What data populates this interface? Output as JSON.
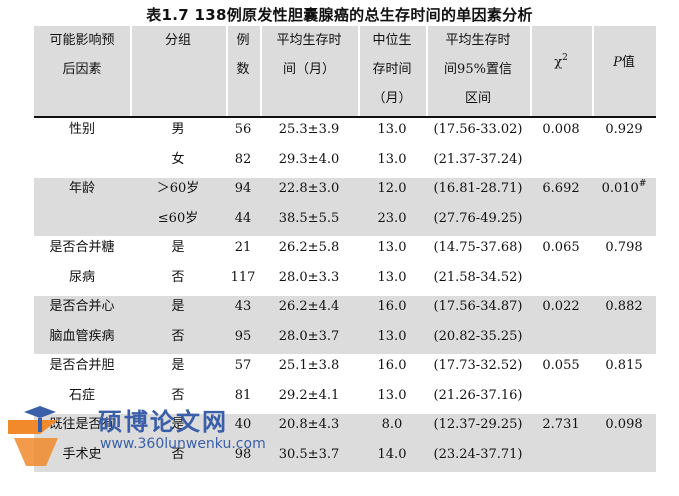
{
  "title": "表1.7 138例原发性胆囊腺癌的总生存时间的单因素分析",
  "headers": {
    "factor": "可能影响预\n后因素",
    "group": "分组",
    "n": "例\n数",
    "mean": "平均生存时\n间（月）",
    "median": "中位生\n存时间\n（月）",
    "ci": "平均生存时\n间95%置信\n区间",
    "chi": "χ",
    "chi_sup": "2",
    "p_italic": "P",
    "p_suffix": "值"
  },
  "rows": [
    {
      "factor": "性别",
      "group": "男",
      "n": "56",
      "mean": "25.3±3.9",
      "median": "13.0",
      "ci": "(17.56-33.02)",
      "chi": "0.008",
      "p": "0.929",
      "p_sup": ""
    },
    {
      "factor": "",
      "group": "女",
      "n": "82",
      "mean": "29.3±4.0",
      "median": "13.0",
      "ci": "(21.37-37.24)",
      "chi": "",
      "p": "",
      "p_sup": ""
    },
    {
      "factor": "年龄",
      "group": "＞60岁",
      "n": "94",
      "mean": "22.8±3.0",
      "median": "12.0",
      "ci": "(16.81-28.71)",
      "chi": "6.692",
      "p": "0.010",
      "p_sup": "#"
    },
    {
      "factor": "",
      "group": "≤60岁",
      "n": "44",
      "mean": "38.5±5.5",
      "median": "23.0",
      "ci": "(27.76-49.25)",
      "chi": "",
      "p": "",
      "p_sup": ""
    },
    {
      "factor": "是否合并糖",
      "group": "是",
      "n": "21",
      "mean": "26.2±5.8",
      "median": "13.0",
      "ci": "(14.75-37.68)",
      "chi": "0.065",
      "p": "0.798",
      "p_sup": ""
    },
    {
      "factor": "尿病",
      "group": "否",
      "n": "117",
      "mean": "28.0±3.3",
      "median": "13.0",
      "ci": "(21.58-34.52)",
      "chi": "",
      "p": "",
      "p_sup": ""
    },
    {
      "factor": "是否合并心",
      "group": "是",
      "n": "43",
      "mean": "26.2±4.4",
      "median": "16.0",
      "ci": "(17.56-34.87)",
      "chi": "0.022",
      "p": "0.882",
      "p_sup": ""
    },
    {
      "factor": "脑血管疾病",
      "group": "否",
      "n": "95",
      "mean": "28.0±3.7",
      "median": "13.0",
      "ci": "(20.82-35.25)",
      "chi": "",
      "p": "",
      "p_sup": ""
    },
    {
      "factor": "是否合并胆",
      "group": "是",
      "n": "57",
      "mean": "25.1±3.8",
      "median": "16.0",
      "ci": "(17.73-32.52)",
      "chi": "0.055",
      "p": "0.815",
      "p_sup": ""
    },
    {
      "factor": "石症",
      "group": "否",
      "n": "81",
      "mean": "29.2±4.1",
      "median": "13.0",
      "ci": "(21.26-37.16)",
      "chi": "",
      "p": "",
      "p_sup": ""
    },
    {
      "factor": "既往是否有",
      "group": "是",
      "n": "40",
      "mean": "20.8±4.3",
      "median": "8.0",
      "ci": "(12.37-29.25)",
      "chi": "2.731",
      "p": "0.098",
      "p_sup": ""
    },
    {
      "factor": "手术史",
      "group": "否",
      "n": "98",
      "mean": "30.5±3.7",
      "median": "14.0",
      "ci": "(23.24-37.71)",
      "chi": "",
      "p": "",
      "p_sup": ""
    }
  ],
  "watermark": {
    "text": "硕博论文网",
    "url": "www.360lunwenku.com",
    "colors": {
      "orange": "#f08a2a",
      "blue": "#3a5fa8"
    }
  }
}
